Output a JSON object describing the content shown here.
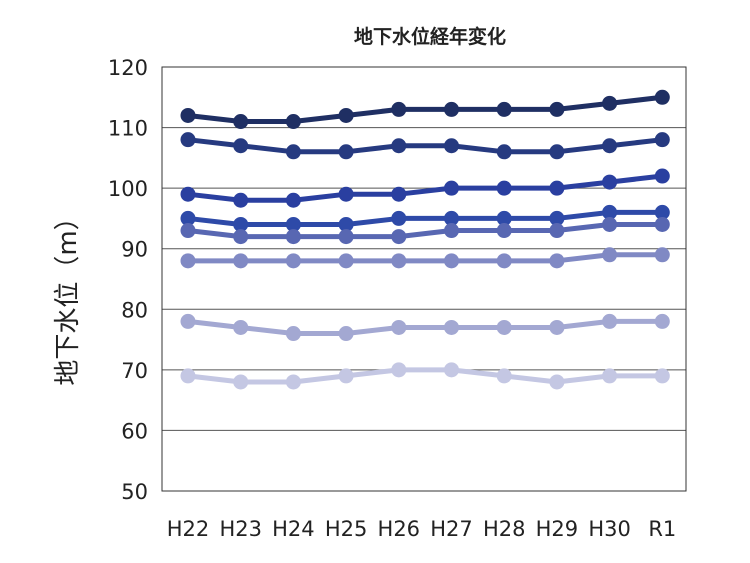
{
  "chart_data": {
    "type": "line",
    "title": "地下水位経年変化",
    "xlabel": "",
    "ylabel": "地下水位（m）",
    "categories": [
      "H22",
      "H23",
      "H24",
      "H25",
      "H26",
      "H27",
      "H28",
      "H29",
      "H30",
      "R1"
    ],
    "ylim": [
      50,
      120
    ],
    "yticks": [
      50,
      60,
      70,
      80,
      90,
      100,
      110,
      120
    ],
    "grid": true,
    "legend": "none",
    "series": [
      {
        "color": "#1f2f63",
        "values": [
          112,
          111,
          111,
          112,
          113,
          113,
          113,
          113,
          114,
          115
        ]
      },
      {
        "color": "#263a80",
        "values": [
          108,
          107,
          106,
          106,
          107,
          107,
          106,
          106,
          107,
          108
        ]
      },
      {
        "color": "#2a3fa0",
        "values": [
          99,
          98,
          98,
          99,
          99,
          100,
          100,
          100,
          101,
          102
        ]
      },
      {
        "color": "#2e4aa8",
        "values": [
          95,
          94,
          94,
          94,
          95,
          95,
          95,
          95,
          96,
          96
        ]
      },
      {
        "color": "#5867b2",
        "values": [
          93,
          92,
          92,
          92,
          92,
          93,
          93,
          93,
          94,
          94
        ]
      },
      {
        "color": "#8089c4",
        "values": [
          88,
          88,
          88,
          88,
          88,
          88,
          88,
          88,
          89,
          89
        ]
      },
      {
        "color": "#a3a8d2",
        "values": [
          78,
          77,
          76,
          76,
          77,
          77,
          77,
          77,
          78,
          78
        ]
      },
      {
        "color": "#c4c7e3",
        "values": [
          69,
          68,
          68,
          69,
          70,
          70,
          69,
          68,
          69,
          69
        ]
      }
    ]
  }
}
